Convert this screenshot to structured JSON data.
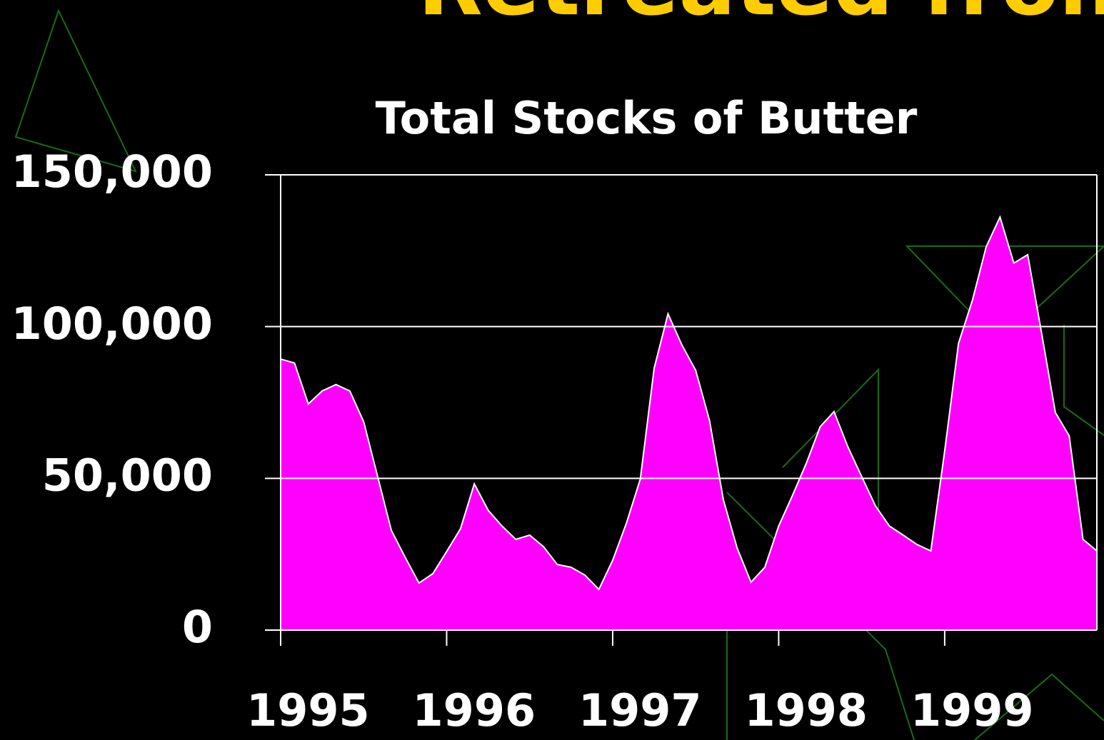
{
  "heading": "Retreated from High",
  "chart_data": {
    "type": "area",
    "title": "Total Stocks of Butter",
    "categories": [
      "1995",
      null,
      null,
      null,
      null,
      null,
      null,
      null,
      null,
      null,
      null,
      null,
      "1996",
      null,
      null,
      null,
      null,
      null,
      null,
      null,
      null,
      null,
      null,
      null,
      "1997",
      null,
      null,
      null,
      null,
      null,
      null,
      null,
      null,
      null,
      null,
      null,
      "1998",
      null,
      null,
      null,
      null,
      null,
      null,
      null,
      null,
      null,
      null,
      null,
      "1999",
      null,
      null,
      null,
      null,
      null,
      null,
      null,
      null,
      null,
      null,
      null
    ],
    "values": [
      89300,
      88000,
      74500,
      78800,
      80900,
      78800,
      68700,
      50800,
      32900,
      24000,
      15500,
      18600,
      25900,
      33400,
      48200,
      39500,
      34300,
      29900,
      31300,
      27500,
      21600,
      20700,
      18100,
      13400,
      23000,
      35300,
      49800,
      86300,
      104200,
      94000,
      85600,
      69100,
      43000,
      27000,
      15800,
      20700,
      34300,
      44400,
      55000,
      67000,
      72000,
      60400,
      50600,
      40900,
      34300,
      31300,
      28200,
      26100,
      59000,
      94500,
      108600,
      126300,
      136100,
      120900,
      123700,
      98000,
      71700,
      64000,
      29900,
      26100
    ],
    "color": "#ff00ff",
    "ylim": [
      0,
      150000
    ],
    "yticks": [
      0,
      {
        "value": 50000,
        "label": "50,000"
      },
      {
        "value": 100000,
        "label": "100,000"
      },
      {
        "value": 150000,
        "label": "150,000"
      }
    ],
    "grid": true
  }
}
